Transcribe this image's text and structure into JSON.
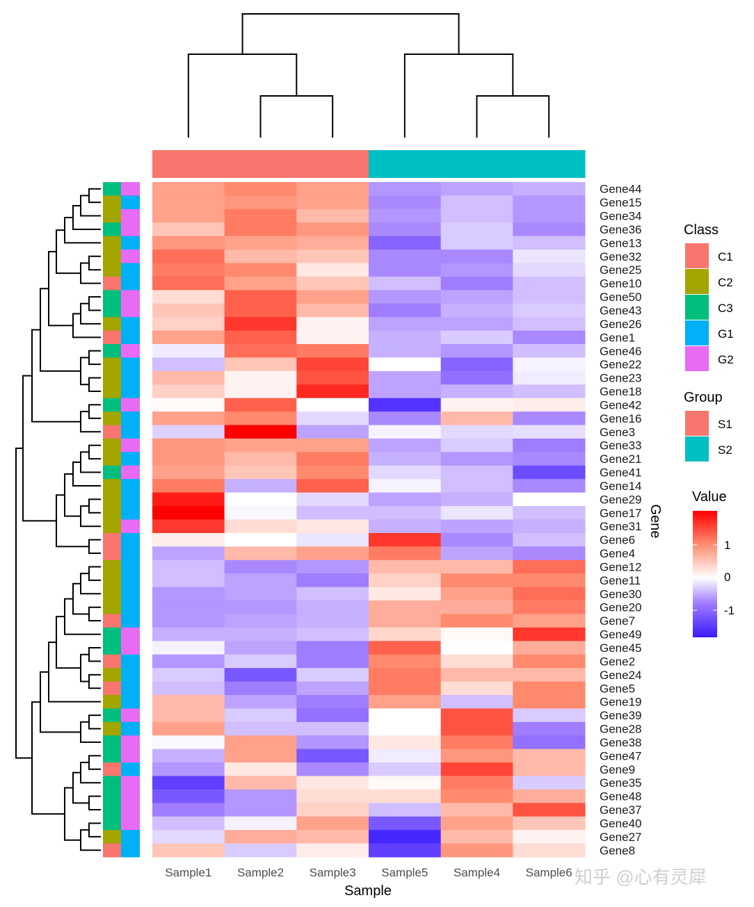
{
  "chart_data": {
    "type": "heatmap",
    "xlabel": "Sample",
    "ylabel": "Gene",
    "columns": [
      "Sample1",
      "Sample2",
      "Sample3",
      "Sample5",
      "Sample4",
      "Sample6"
    ],
    "column_group": [
      "S1",
      "S1",
      "S1",
      "S2",
      "S2",
      "S2"
    ],
    "rows": [
      "Gene44",
      "Gene15",
      "Gene34",
      "Gene36",
      "Gene13",
      "Gene32",
      "Gene25",
      "Gene10",
      "Gene50",
      "Gene43",
      "Gene26",
      "Gene1",
      "Gene46",
      "Gene22",
      "Gene23",
      "Gene18",
      "Gene42",
      "Gene16",
      "Gene3",
      "Gene33",
      "Gene21",
      "Gene41",
      "Gene14",
      "Gene29",
      "Gene17",
      "Gene31",
      "Gene6",
      "Gene4",
      "Gene12",
      "Gene11",
      "Gene30",
      "Gene20",
      "Gene7",
      "Gene49",
      "Gene45",
      "Gene2",
      "Gene24",
      "Gene5",
      "Gene19",
      "Gene39",
      "Gene28",
      "Gene38",
      "Gene47",
      "Gene9",
      "Gene35",
      "Gene48",
      "Gene37",
      "Gene40",
      "Gene27",
      "Gene8"
    ],
    "row_class": [
      "C3",
      "C2",
      "C2",
      "C3",
      "C2",
      "C2",
      "C2",
      "C1",
      "C3",
      "C3",
      "C2",
      "C1",
      "C3",
      "C2",
      "C2",
      "C2",
      "C3",
      "C2",
      "C1",
      "C2",
      "C2",
      "C3",
      "C2",
      "C2",
      "C2",
      "C2",
      "C1",
      "C1",
      "C2",
      "C2",
      "C2",
      "C2",
      "C1",
      "C3",
      "C3",
      "C1",
      "C2",
      "C1",
      "C2",
      "C3",
      "C2",
      "C3",
      "C3",
      "C1",
      "C3",
      "C3",
      "C3",
      "C3",
      "C2",
      "C1"
    ],
    "row_group": [
      "G2",
      "G1",
      "G2",
      "G2",
      "G1",
      "G2",
      "G1",
      "G1",
      "G2",
      "G2",
      "G1",
      "G1",
      "G2",
      "G1",
      "G1",
      "G1",
      "G2",
      "G1",
      "G1",
      "G2",
      "G1",
      "G2",
      "G1",
      "G1",
      "G1",
      "G2",
      "G1",
      "G1",
      "G1",
      "G1",
      "G1",
      "G1",
      "G1",
      "G2",
      "G2",
      "G1",
      "G1",
      "G1",
      "G1",
      "G2",
      "G1",
      "G2",
      "G2",
      "G1",
      "G2",
      "G2",
      "G2",
      "G2",
      "G1",
      "G1"
    ],
    "values": [
      [
        0.8,
        1.0,
        0.8,
        -0.8,
        -0.7,
        -0.6
      ],
      [
        0.8,
        0.9,
        0.8,
        -0.9,
        -0.5,
        -0.8
      ],
      [
        0.8,
        1.1,
        0.6,
        -0.8,
        -0.5,
        -0.8
      ],
      [
        0.5,
        1.1,
        0.9,
        -0.9,
        -0.4,
        -0.9
      ],
      [
        0.9,
        0.8,
        0.7,
        -1.2,
        -0.4,
        -0.5
      ],
      [
        1.2,
        0.6,
        0.5,
        -0.9,
        -0.9,
        -0.2
      ],
      [
        1.1,
        1.0,
        0.2,
        -0.9,
        -0.8,
        -0.3
      ],
      [
        1.2,
        0.8,
        0.5,
        -0.5,
        -1.0,
        -0.5
      ],
      [
        0.3,
        1.3,
        0.8,
        -0.8,
        -0.7,
        -0.5
      ],
      [
        0.5,
        1.3,
        0.6,
        -1.0,
        -0.6,
        -0.4
      ],
      [
        0.4,
        1.6,
        0.1,
        -0.7,
        -0.7,
        -0.5
      ],
      [
        0.8,
        1.3,
        0.1,
        -0.6,
        -0.4,
        -0.9
      ],
      [
        -0.15,
        1.2,
        1.1,
        -0.6,
        -0.8,
        -0.5
      ],
      [
        -0.5,
        0.5,
        1.5,
        0.0,
        -1.2,
        -0.1
      ],
      [
        0.6,
        0.1,
        1.4,
        -0.7,
        -1.1,
        -0.15
      ],
      [
        0.4,
        0.1,
        1.7,
        -0.7,
        -0.6,
        -0.5
      ],
      [
        0.05,
        1.3,
        0.0,
        -1.6,
        0.1,
        0.15
      ],
      [
        0.8,
        1.0,
        -0.3,
        -0.9,
        0.6,
        -0.9
      ],
      [
        -0.35,
        2.0,
        -0.7,
        -0.1,
        -0.3,
        -0.25
      ],
      [
        0.9,
        0.8,
        0.8,
        -0.7,
        -0.4,
        -1.0
      ],
      [
        0.9,
        0.6,
        1.1,
        -0.6,
        -0.8,
        -0.9
      ],
      [
        0.8,
        0.5,
        1.0,
        -0.3,
        -0.5,
        -1.4
      ],
      [
        1.1,
        -0.6,
        1.3,
        -0.1,
        -0.5,
        -0.9
      ],
      [
        1.8,
        0.0,
        -0.3,
        -0.7,
        -0.6,
        0.0
      ],
      [
        2.0,
        -0.05,
        -0.5,
        -0.5,
        -0.2,
        -0.5
      ],
      [
        1.6,
        0.3,
        0.2,
        -0.6,
        -0.7,
        -0.6
      ],
      [
        0.15,
        0.0,
        -0.2,
        1.6,
        -0.9,
        -0.5
      ],
      [
        -0.7,
        0.6,
        0.8,
        1.1,
        -0.7,
        -0.9
      ],
      [
        -0.5,
        -0.9,
        -0.8,
        0.6,
        0.6,
        1.2
      ],
      [
        -0.5,
        -0.7,
        -1.0,
        0.4,
        1.0,
        1.0
      ],
      [
        -0.8,
        -0.7,
        -0.5,
        0.2,
        0.8,
        1.2
      ],
      [
        -0.8,
        -0.8,
        -0.6,
        0.7,
        0.7,
        1.1
      ],
      [
        -0.8,
        -0.7,
        -0.6,
        0.7,
        1.0,
        0.8
      ],
      [
        -0.6,
        -0.6,
        -0.5,
        0.35,
        0.05,
        1.6
      ],
      [
        -0.1,
        -0.7,
        -1.0,
        1.3,
        0.0,
        0.7
      ],
      [
        -0.8,
        -0.4,
        -1.0,
        1.0,
        0.3,
        1.0
      ],
      [
        -0.4,
        -1.3,
        -0.4,
        1.1,
        0.6,
        0.6
      ],
      [
        -0.5,
        -1.0,
        -0.7,
        1.1,
        0.3,
        1.0
      ],
      [
        0.6,
        -0.7,
        -1.0,
        0.8,
        -0.5,
        1.0
      ],
      [
        0.6,
        -0.4,
        -1.1,
        0.0,
        1.4,
        -0.4
      ],
      [
        0.8,
        -0.5,
        -0.5,
        0.0,
        1.4,
        -1.0
      ],
      [
        -0.05,
        0.8,
        -0.8,
        0.2,
        1.1,
        -1.1
      ],
      [
        -0.6,
        0.8,
        -1.3,
        -0.15,
        0.9,
        0.6
      ],
      [
        -0.8,
        0.2,
        -0.9,
        -0.4,
        1.5,
        0.6
      ],
      [
        -1.5,
        0.6,
        0.2,
        0.05,
        1.1,
        -0.4
      ],
      [
        -1.3,
        -0.8,
        0.3,
        0.3,
        1.0,
        0.7
      ],
      [
        -1.0,
        -0.8,
        0.4,
        -0.5,
        0.6,
        1.4
      ],
      [
        -0.5,
        -0.1,
        0.8,
        -1.3,
        0.8,
        0.5
      ],
      [
        -0.3,
        0.7,
        0.6,
        -1.7,
        0.6,
        0.1
      ],
      [
        0.5,
        -0.4,
        0.15,
        -1.5,
        0.9,
        0.3
      ]
    ],
    "color_scale": {
      "low": "#3A1BFF",
      "mid": "#FFFFFF",
      "high": "#FF0000",
      "range": [
        -1.8,
        2.0
      ]
    },
    "dendrograms": {
      "rows": true,
      "columns": true
    },
    "legend_placement": "right",
    "legends": {
      "class": {
        "title": "Class",
        "items": [
          {
            "label": "C1",
            "color": "#F8766D"
          },
          {
            "label": "C2",
            "color": "#A3A500"
          },
          {
            "label": "C3",
            "color": "#00BF7D"
          },
          {
            "label": "G1",
            "color": "#00B0F6"
          },
          {
            "label": "G2",
            "color": "#E76BF3"
          }
        ]
      },
      "group": {
        "title": "Group",
        "items": [
          {
            "label": "S1",
            "color": "#F8766D"
          },
          {
            "label": "S2",
            "color": "#00BFC4"
          }
        ]
      },
      "value": {
        "title": "Value",
        "ticks": [
          "1",
          "0",
          "-1"
        ]
      }
    }
  },
  "watermark": "知乎 @心有灵犀"
}
